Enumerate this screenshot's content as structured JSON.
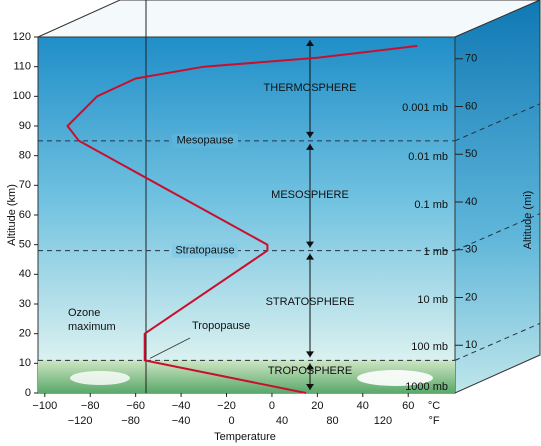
{
  "chart_data": {
    "type": "line",
    "xlabel": "Temperature",
    "x_unit": "°C",
    "x2_unit": "°F",
    "ylabel": "Altitude (km)",
    "y2label": "Altitude (mi)",
    "x": [
      15,
      -56,
      -56,
      -2,
      -2,
      -85,
      -90,
      -77,
      -60,
      -30,
      20,
      64
    ],
    "values": [
      0,
      11,
      20,
      48,
      50,
      85,
      90,
      100,
      106,
      110,
      113,
      117
    ],
    "color": "#c8102e",
    "xlim": [
      -103,
      80.6
    ],
    "xticks": [
      {
        "value": -100,
        "label": "−100"
      },
      {
        "value": -80,
        "label": "−80"
      },
      {
        "value": -60,
        "label": "−60"
      },
      {
        "value": -40,
        "label": "−40"
      },
      {
        "value": -20,
        "label": "−20"
      },
      0,
      20,
      40,
      60
    ],
    "x2lim": [
      -153.4,
      177.1
    ],
    "x2ticks": [
      {
        "value": -120,
        "label": "−120"
      },
      {
        "value": -80,
        "label": "−80"
      },
      {
        "value": -40,
        "label": "−40"
      },
      0,
      40,
      80,
      120
    ],
    "ylim": [
      0,
      120
    ],
    "yticks": [
      0,
      10,
      20,
      30,
      40,
      50,
      60,
      70,
      80,
      90,
      100,
      110,
      120
    ],
    "y2lim": [
      0,
      74.56
    ],
    "y2ticks": [
      10,
      20,
      30,
      40,
      50,
      60,
      70
    ],
    "layers": [
      "THERMOSPHERE",
      "MESOSPHERE",
      "STRATOSPHERE",
      "TROPOSPHERE"
    ],
    "boundaries": [
      {
        "label": "Mesopause",
        "altitude": 85
      },
      {
        "label": "Stratopause",
        "altitude": 48
      },
      {
        "label": "Tropopause",
        "altitude": 11
      }
    ],
    "pressures": [
      {
        "label": "0.001 mb",
        "altitude": 96
      },
      {
        "label": "0.01 mb",
        "altitude": 79.5
      },
      {
        "label": "0.1 mb",
        "altitude": 63.4
      },
      {
        "label": "1 mb",
        "altitude": 47.5
      },
      {
        "label": "10 mb",
        "altitude": 31.3
      },
      {
        "label": "100 mb",
        "altitude": 15.5
      },
      {
        "label": "1000 mb",
        "altitude": 2
      }
    ],
    "annotation": "Ozone maximum"
  }
}
